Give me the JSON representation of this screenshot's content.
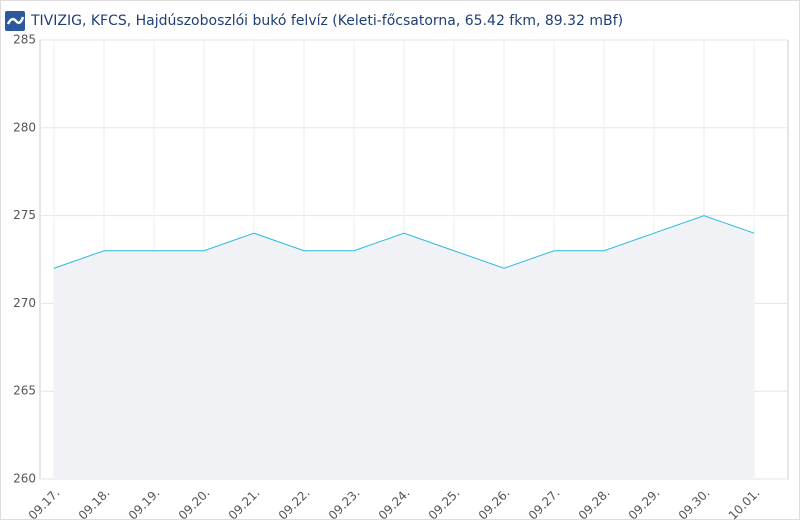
{
  "chart_data": {
    "type": "area",
    "title": "TIVIZIG, KFCS, Hajdúszoboszlói bukó felvíz (Keleti-főcsatorna, 65.42 fkm, 89.32 mBf)",
    "categories": [
      "09.17.",
      "09.18.",
      "09.19.",
      "09.20.",
      "09.21.",
      "09.22.",
      "09.23.",
      "09.24.",
      "09.25.",
      "09.26.",
      "09.27.",
      "09.28.",
      "09.29.",
      "09.30.",
      "10.01."
    ],
    "values": [
      272,
      273,
      273,
      273,
      274,
      273,
      273,
      274,
      273,
      272,
      273,
      273,
      274,
      275,
      274
    ],
    "color": "#2bbbdc",
    "fill": "#f1f2f6",
    "ylim": [
      260,
      285
    ],
    "yticks": [
      260,
      265,
      270,
      275,
      280,
      285
    ],
    "grid": true
  }
}
